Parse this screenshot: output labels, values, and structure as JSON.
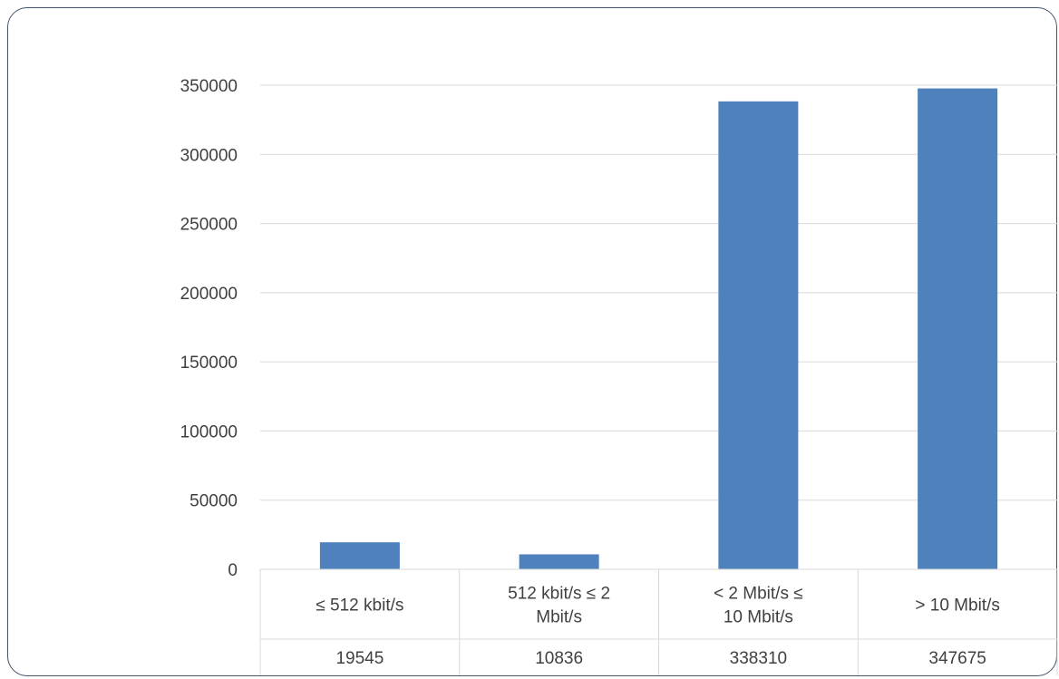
{
  "chart_data": {
    "type": "bar",
    "categories": [
      "≤ 512 kbit/s",
      "512 kbit/s ≤ 2 Mbit/s",
      "< 2 Mbit/s ≤ 10 Mbit/s",
      "> 10 Mbit/s"
    ],
    "category_lines": [
      [
        "≤ 512 kbit/s"
      ],
      [
        "512 kbit/s ≤ 2",
        "Mbit/s"
      ],
      [
        "< 2 Mbit/s ≤",
        "10 Mbit/s"
      ],
      [
        "> 10 Mbit/s"
      ]
    ],
    "values": [
      19545,
      10836,
      338310,
      347675
    ],
    "value_labels": [
      "19545",
      "10836",
      "338310",
      "347675"
    ],
    "yticks": [
      0,
      50000,
      100000,
      150000,
      200000,
      250000,
      300000,
      350000
    ],
    "ylim": [
      0,
      350000
    ],
    "bar_color": "#4f81bd",
    "grid": true,
    "data_table": true
  }
}
